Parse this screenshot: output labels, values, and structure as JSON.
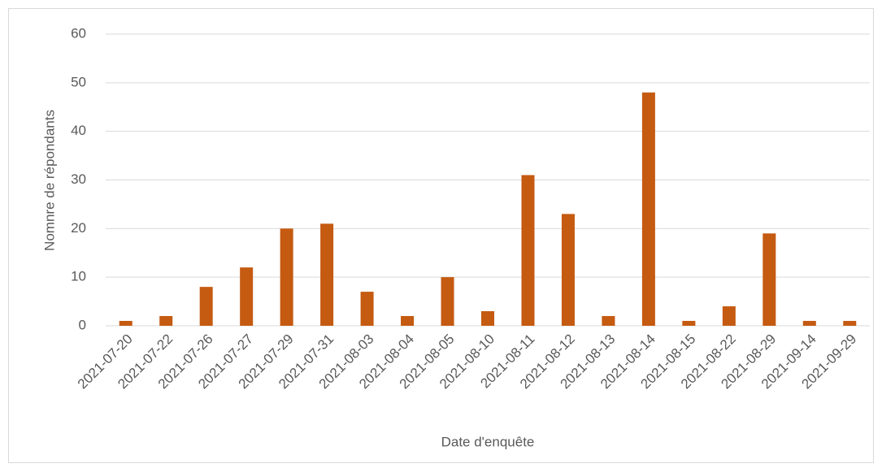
{
  "chart_data": {
    "type": "bar",
    "x_label": "Date d'enquête",
    "y_label": "Nomnre de répondants",
    "categories": [
      "2021-07-20",
      "2021-07-22",
      "2021-07-26",
      "2021-07-27",
      "2021-07-29",
      "2021-07-31",
      "2021-08-03",
      "2021-08-04",
      "2021-08-05",
      "2021-08-10",
      "2021-08-11",
      "2021-08-12",
      "2021-08-13",
      "2021-08-14",
      "2021-08-15",
      "2021-08-22",
      "2021-08-29",
      "2021-09-14",
      "2021-09-29"
    ],
    "values": [
      1,
      2,
      8,
      12,
      20,
      21,
      7,
      2,
      10,
      3,
      31,
      23,
      2,
      48,
      1,
      4,
      19,
      1,
      1
    ],
    "color": "#c55a11",
    "ylim": [
      0,
      60
    ],
    "yticks": [
      0,
      10,
      20,
      30,
      40,
      50,
      60
    ],
    "grid": true
  }
}
